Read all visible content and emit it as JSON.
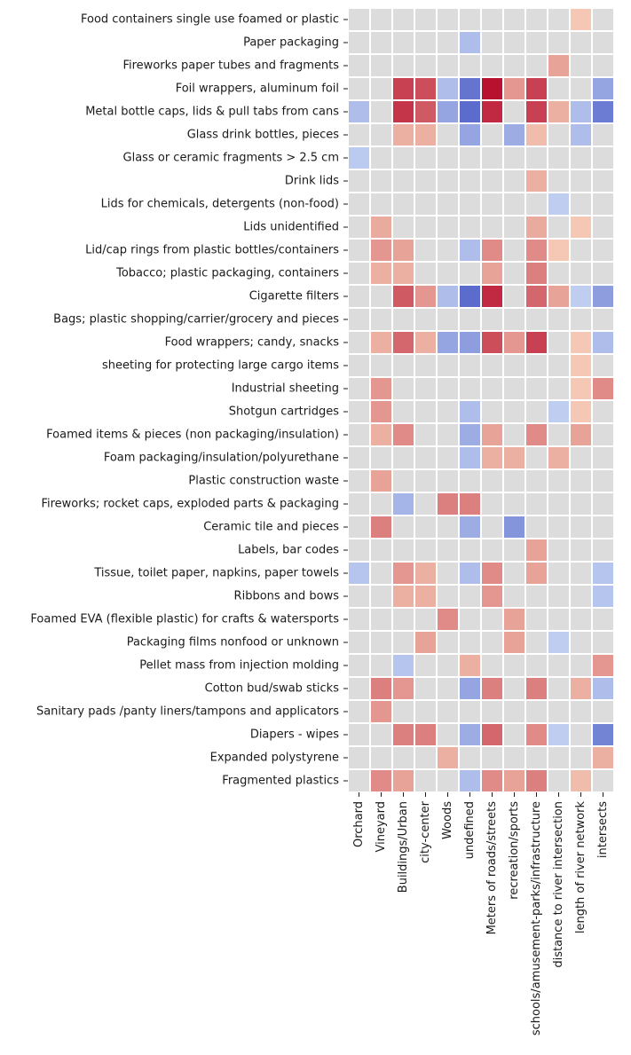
{
  "chart_data": {
    "type": "heatmap",
    "title": "",
    "xlabel": "",
    "ylabel": "",
    "colormap": "coolwarm",
    "value_range": [
      -1,
      1
    ],
    "grid": false,
    "legend": "none",
    "cell_separator_color": "#ffffff",
    "neutral_color": "#dcdcdc",
    "columns": [
      "Orchard",
      "Vineyard",
      "Buildings/Urban",
      "city-center",
      "Woods",
      "undefined",
      "Meters of roads/streets",
      "recreation/sports",
      "schools/amusement-parks/infrastructure",
      "distance to river intersection",
      "length of river network",
      "intersects"
    ],
    "rows": [
      "Food containers single use foamed or plastic",
      "Paper packaging",
      "Fireworks paper tubes and fragments",
      "Foil wrappers, aluminum foil",
      "Metal bottle caps, lids & pull tabs from cans",
      "Glass drink bottles, pieces",
      "Glass or ceramic fragments > 2.5 cm",
      "Drink lids",
      "Lids for chemicals, detergents (non-food)",
      "Lids unidentified",
      "Lid/cap rings from plastic bottles/containers",
      "Tobacco; plastic packaging, containers",
      "Cigarette filters",
      "Bags; plastic shopping/carrier/grocery and pieces",
      "Food wrappers; candy, snacks",
      "sheeting for protecting large cargo items",
      "Industrial sheeting",
      "Shotgun cartridges",
      "Foamed items & pieces (non packaging/insulation)",
      "Foam packaging/insulation/polyurethane",
      "Plastic construction waste",
      "Fireworks; rocket caps, exploded parts & packaging",
      "Ceramic tile and pieces",
      "Labels, bar codes",
      "Tissue, toilet paper, napkins, paper towels",
      "Ribbons and bows",
      "Foamed EVA (flexible plastic) for crafts & watersports",
      "Packaging films nonfood or unknown",
      "Pellet mass from injection molding",
      "Cotton bud/swab sticks",
      "Sanitary pads /panty liners/tampons and applicators",
      "Diapers - wipes",
      "Expanded polystyrene",
      "Fragmented plastics"
    ],
    "values": [
      [
        0,
        0,
        0,
        0,
        0,
        0,
        0,
        0,
        0,
        0,
        0.2,
        0
      ],
      [
        0,
        0,
        0,
        0,
        0,
        -0.3,
        0,
        0,
        0,
        0,
        0,
        0
      ],
      [
        0,
        0,
        0,
        0,
        0,
        0,
        0,
        0,
        0,
        0.35,
        0,
        0
      ],
      [
        0,
        0,
        0.75,
        0.7,
        -0.3,
        -0.75,
        0.95,
        0.4,
        0.75,
        0,
        0,
        -0.45
      ],
      [
        -0.3,
        0,
        0.8,
        0.65,
        -0.45,
        -0.8,
        0.85,
        0,
        0.75,
        0.3,
        -0.3,
        -0.7
      ],
      [
        0,
        0,
        0.3,
        0.3,
        0,
        -0.45,
        0,
        -0.4,
        0.25,
        0,
        -0.3,
        0
      ],
      [
        -0.22,
        0,
        0,
        0,
        0,
        0,
        0,
        0,
        0,
        0,
        0,
        0
      ],
      [
        0,
        0,
        0,
        0,
        0,
        0,
        0,
        0,
        0.3,
        0,
        0,
        0
      ],
      [
        0,
        0,
        0,
        0,
        0,
        0,
        0,
        0,
        0,
        -0.2,
        0,
        0
      ],
      [
        0,
        0.32,
        0,
        0,
        0,
        0,
        0,
        0,
        0.32,
        0,
        0.2,
        0
      ],
      [
        0,
        0.4,
        0.35,
        0,
        0,
        -0.3,
        0.45,
        0,
        0.45,
        0.2,
        0,
        0
      ],
      [
        0,
        0.3,
        0.3,
        0,
        0,
        0,
        0.35,
        0,
        0.5,
        0,
        0,
        0
      ],
      [
        0,
        0,
        0.65,
        0.4,
        -0.3,
        -0.8,
        0.85,
        0,
        0.6,
        0.35,
        -0.2,
        -0.5
      ],
      [
        0,
        0,
        0,
        0,
        0,
        0,
        0,
        0,
        0,
        0,
        0,
        0
      ],
      [
        0,
        0.3,
        0.6,
        0.3,
        -0.45,
        -0.5,
        0.7,
        0.4,
        0.75,
        0,
        0.2,
        -0.3
      ],
      [
        0,
        0,
        0,
        0,
        0,
        0,
        0,
        0,
        0,
        0,
        0.2,
        0
      ],
      [
        0,
        0.4,
        0,
        0,
        0,
        0,
        0,
        0,
        0,
        0,
        0.2,
        0.45
      ],
      [
        0,
        0.4,
        0,
        0,
        0,
        -0.3,
        0,
        0,
        0,
        -0.2,
        0.2,
        0
      ],
      [
        0,
        0.3,
        0.45,
        0,
        0,
        -0.4,
        0.35,
        0,
        0.45,
        0,
        0.35,
        0
      ],
      [
        0,
        0,
        0,
        0,
        0,
        -0.3,
        0.3,
        0.3,
        0,
        0.3,
        0,
        0
      ],
      [
        0,
        0.35,
        0,
        0,
        0,
        0,
        0,
        0,
        0,
        0,
        0,
        0
      ],
      [
        0,
        0,
        -0.35,
        0,
        0.5,
        0.5,
        0,
        0,
        0,
        0,
        0,
        0
      ],
      [
        0,
        0.5,
        0,
        0,
        0,
        -0.4,
        0,
        -0.55,
        0,
        0,
        0,
        0
      ],
      [
        0,
        0,
        0,
        0,
        0,
        0,
        0,
        0,
        0.35,
        0,
        0,
        0
      ],
      [
        -0.25,
        0,
        0.4,
        0.3,
        0,
        -0.3,
        0.45,
        0,
        0.35,
        0,
        0,
        -0.25
      ],
      [
        0,
        0,
        0.3,
        0.3,
        0,
        0,
        0.4,
        0,
        0,
        0,
        0,
        -0.25
      ],
      [
        0,
        0,
        0,
        0,
        0.45,
        0,
        0,
        0.35,
        0,
        0,
        0,
        0
      ],
      [
        0,
        0,
        0,
        0.35,
        0,
        0,
        0,
        0.35,
        0,
        -0.2,
        0,
        0
      ],
      [
        0,
        0,
        -0.25,
        0,
        0,
        0.3,
        0,
        0,
        0,
        0,
        0,
        0.4
      ],
      [
        0,
        0.5,
        0.4,
        0,
        0,
        -0.45,
        0.5,
        0,
        0.5,
        0,
        0.3,
        -0.3
      ],
      [
        0,
        0.4,
        0,
        0,
        0,
        0,
        0,
        0,
        0,
        0,
        0,
        0
      ],
      [
        0,
        0,
        0.5,
        0.5,
        0,
        -0.4,
        0.6,
        0,
        0.45,
        -0.2,
        0,
        -0.65
      ],
      [
        0,
        0,
        0,
        0,
        0.3,
        0,
        0,
        0,
        0,
        0,
        0,
        0.3
      ],
      [
        0,
        0.45,
        0.35,
        0,
        0,
        -0.3,
        0.45,
        0.35,
        0.5,
        0,
        0.25,
        0
      ]
    ]
  }
}
